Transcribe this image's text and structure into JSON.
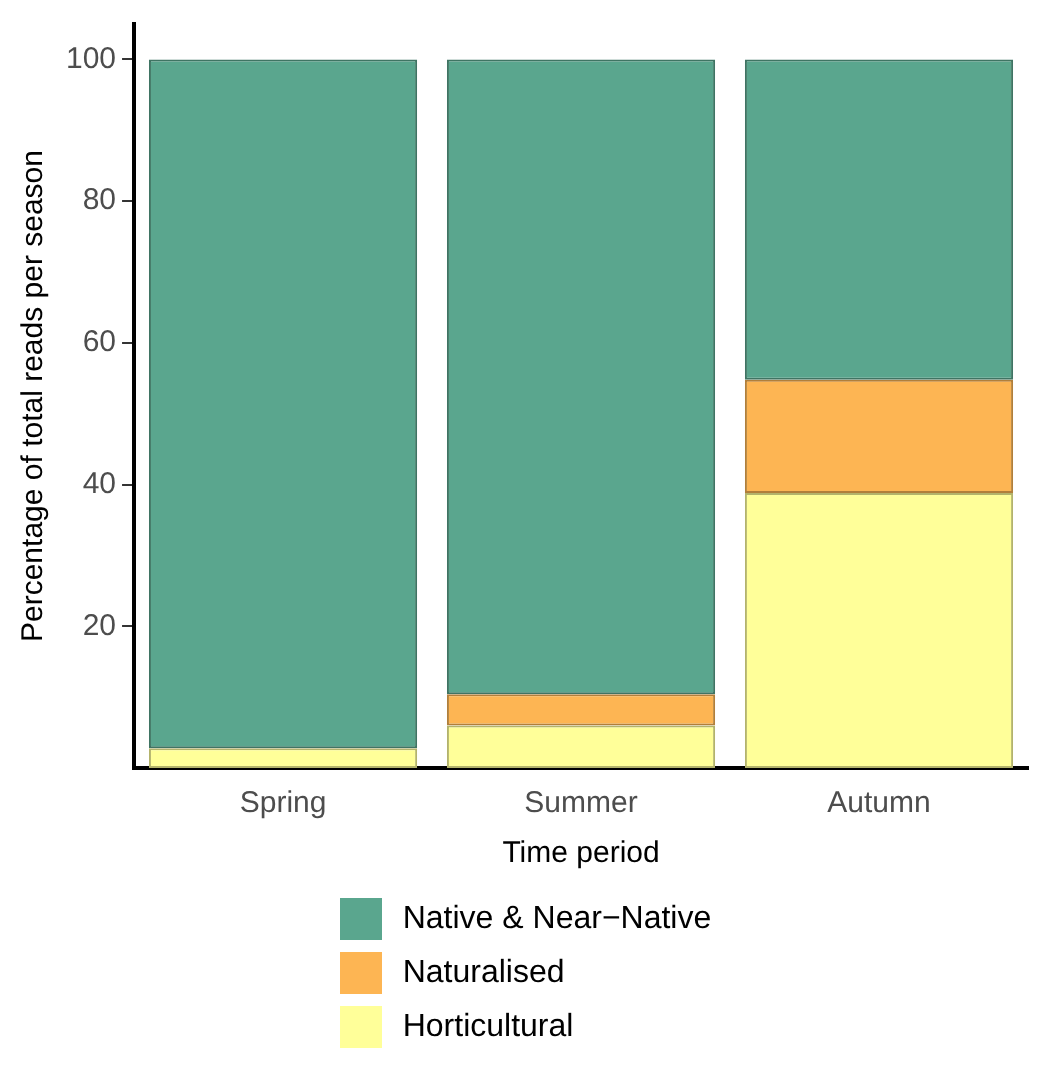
{
  "chart_data": {
    "type": "bar",
    "stacked": true,
    "xlabel": "Time period",
    "ylabel": "Percentage of total reads per season",
    "categories": [
      "Spring",
      "Summer",
      "Autumn"
    ],
    "series": [
      {
        "name": "Horticultural",
        "color": "#ffff99",
        "values": [
          2.8,
          6.0,
          38.8
        ]
      },
      {
        "name": "Naturalised",
        "color": "#fdb553",
        "values": [
          0,
          4.4,
          16.0
        ]
      },
      {
        "name": "Native & Near−Native",
        "color": "#5aa68e",
        "values": [
          97.2,
          89.6,
          45.2
        ]
      }
    ],
    "ylim": [
      0,
      105
    ],
    "yticks": [
      20,
      40,
      60,
      80,
      100
    ],
    "grid": false,
    "legend": "bottom"
  }
}
